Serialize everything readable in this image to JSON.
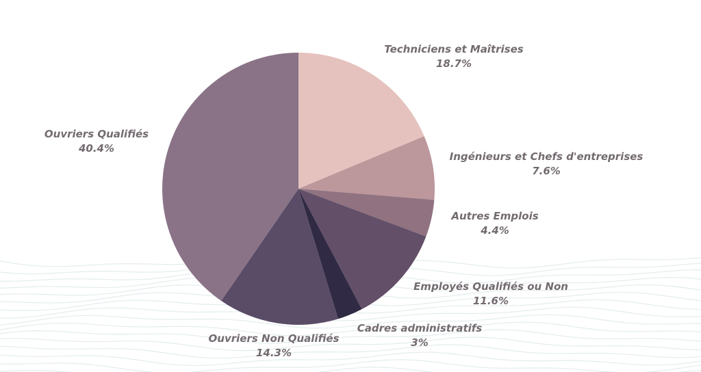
{
  "chart_data": {
    "type": "pie",
    "start_angle_deg": 0,
    "direction": "clockwise",
    "slices": [
      {
        "label": "Techniciens et Maîtrises",
        "value": 18.7,
        "display": "18.7%",
        "color": "#e5c2bd"
      },
      {
        "label": "Ingénieurs et Chefs d'entreprises",
        "value": 7.6,
        "display": "7.6%",
        "color": "#bc979c"
      },
      {
        "label": "Autres Emplois",
        "value": 4.4,
        "display": "4.4%",
        "color": "#907280"
      },
      {
        "label": "Employés Qualifiés ou Non",
        "value": 11.6,
        "display": "11.6%",
        "color": "#634f68"
      },
      {
        "label": "Cadres administratifs",
        "value": 3,
        "display": "3%",
        "color": "#302a44"
      },
      {
        "label": "Ouvriers Non Qualifiés",
        "value": 14.3,
        "display": "14.3%",
        "color": "#5a4c67"
      },
      {
        "label": "Ouvriers Qualifiés",
        "value": 40.4,
        "display": "40.4%",
        "color": "#8a7387"
      }
    ],
    "label_color": "#736b70",
    "background_pattern": "wavy-lines-bottom"
  }
}
